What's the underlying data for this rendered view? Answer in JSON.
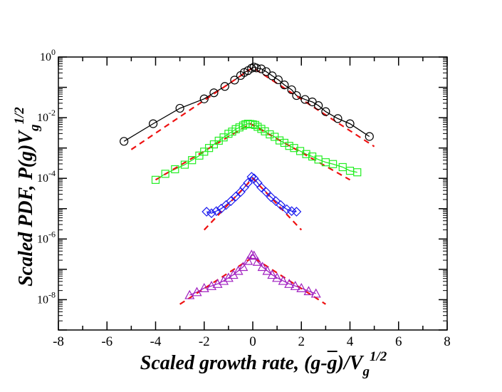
{
  "chart_data": {
    "type": "scatter",
    "title": "",
    "xlabel": {
      "main": "Scaled growth rate, (g-",
      "bar": "g",
      "tail": ")/V",
      "sub": "g",
      "sup": "1/2"
    },
    "ylabel": {
      "main": "Scaled PDF, P(g)V",
      "sub": "g",
      "sup": "1/2"
    },
    "xlim": [
      -8,
      8
    ],
    "ylim_log10": [
      -9,
      0
    ],
    "yscale": "log",
    "xticks": [
      -8,
      -6,
      -4,
      -2,
      0,
      2,
      4,
      6,
      8
    ],
    "xtick_labels": [
      "-8",
      "-6",
      "-4",
      "-2",
      "0",
      "2",
      "4",
      "6",
      "8"
    ],
    "yticks_log10": [
      0,
      -2,
      -4,
      -6,
      -8
    ],
    "ytick_labels": [
      {
        "base": "10",
        "exp": "0"
      },
      {
        "base": "10",
        "exp": "-2"
      },
      {
        "base": "10",
        "exp": "-4"
      },
      {
        "base": "10",
        "exp": "-6"
      },
      {
        "base": "10",
        "exp": "-8"
      }
    ],
    "series": [
      {
        "name": "series-1",
        "marker": "circle",
        "color": "#000000",
        "connected": true,
        "points": [
          [
            -5.3,
            -2.78
          ],
          [
            -4.1,
            -2.2
          ],
          [
            -3.0,
            -1.69
          ],
          [
            -2.0,
            -1.38
          ],
          [
            -1.6,
            -1.18
          ],
          [
            -1.15,
            -0.97
          ],
          [
            -0.75,
            -0.76
          ],
          [
            -0.5,
            -0.61
          ],
          [
            -0.35,
            -0.51
          ],
          [
            -0.2,
            -0.45
          ],
          [
            -0.05,
            -0.37
          ],
          [
            0.05,
            -0.33
          ],
          [
            0.15,
            -0.36
          ],
          [
            0.35,
            -0.39
          ],
          [
            0.55,
            -0.48
          ],
          [
            0.8,
            -0.62
          ],
          [
            1.05,
            -0.75
          ],
          [
            1.3,
            -0.92
          ],
          [
            1.6,
            -1.08
          ],
          [
            1.8,
            -1.27
          ],
          [
            2.15,
            -1.4
          ],
          [
            2.45,
            -1.48
          ],
          [
            2.7,
            -1.6
          ],
          [
            3.0,
            -1.8
          ],
          [
            3.5,
            -2.03
          ],
          [
            4.0,
            -2.2
          ],
          [
            4.8,
            -2.62
          ]
        ],
        "fit": [
          [
            -5.0,
            -3.05
          ],
          [
            0,
            -0.35
          ],
          [
            5.0,
            -2.95
          ]
        ]
      },
      {
        "name": "series-2",
        "marker": "square",
        "color": "#22ee22",
        "connected": true,
        "points": [
          [
            -4.0,
            -4.05
          ],
          [
            -3.6,
            -3.85
          ],
          [
            -3.2,
            -3.7
          ],
          [
            -2.8,
            -3.55
          ],
          [
            -2.5,
            -3.4
          ],
          [
            -2.2,
            -3.25
          ],
          [
            -2.0,
            -3.12
          ],
          [
            -1.8,
            -3.0
          ],
          [
            -1.6,
            -2.88
          ],
          [
            -1.4,
            -2.76
          ],
          [
            -1.2,
            -2.65
          ],
          [
            -1.0,
            -2.53
          ],
          [
            -0.85,
            -2.46
          ],
          [
            -0.7,
            -2.38
          ],
          [
            -0.55,
            -2.32
          ],
          [
            -0.4,
            -2.26
          ],
          [
            -0.3,
            -2.22
          ],
          [
            -0.2,
            -2.2
          ],
          [
            -0.1,
            -2.21
          ],
          [
            0.0,
            -2.22
          ],
          [
            0.1,
            -2.24
          ],
          [
            0.2,
            -2.3
          ],
          [
            0.35,
            -2.37
          ],
          [
            0.5,
            -2.45
          ],
          [
            0.7,
            -2.55
          ],
          [
            0.9,
            -2.63
          ],
          [
            1.1,
            -2.75
          ],
          [
            1.3,
            -2.83
          ],
          [
            1.5,
            -2.93
          ],
          [
            1.7,
            -3.0
          ],
          [
            1.95,
            -3.1
          ],
          [
            2.2,
            -3.2
          ],
          [
            2.45,
            -3.28
          ],
          [
            2.7,
            -3.38
          ],
          [
            3.0,
            -3.47
          ],
          [
            3.3,
            -3.53
          ],
          [
            3.7,
            -3.63
          ],
          [
            4.0,
            -3.75
          ],
          [
            4.3,
            -3.8
          ]
        ],
        "fit": [
          [
            -4.0,
            -4.05
          ],
          [
            -0.1,
            -2.2
          ],
          [
            4.0,
            -4.05
          ]
        ]
      },
      {
        "name": "series-3",
        "marker": "diamond",
        "color": "#1a1aee",
        "connected": true,
        "points": [
          [
            -1.9,
            -5.1
          ],
          [
            -1.7,
            -5.15
          ],
          [
            -1.5,
            -5.08
          ],
          [
            -1.3,
            -5.0
          ],
          [
            -1.1,
            -4.88
          ],
          [
            -0.9,
            -4.75
          ],
          [
            -0.7,
            -4.6
          ],
          [
            -0.5,
            -4.45
          ],
          [
            -0.35,
            -4.3
          ],
          [
            -0.2,
            -4.15
          ],
          [
            -0.05,
            -3.95
          ],
          [
            0.05,
            -4.0
          ],
          [
            0.2,
            -4.15
          ],
          [
            0.35,
            -4.3
          ],
          [
            0.55,
            -4.45
          ],
          [
            0.75,
            -4.62
          ],
          [
            0.95,
            -4.75
          ],
          [
            1.15,
            -4.88
          ],
          [
            1.4,
            -5.02
          ],
          [
            1.6,
            -5.08
          ],
          [
            1.8,
            -5.1
          ]
        ],
        "fit": [
          [
            -2.0,
            -5.7
          ],
          [
            0,
            -4.0
          ],
          [
            2.0,
            -5.7
          ]
        ]
      },
      {
        "name": "series-4",
        "marker": "triangle",
        "color": "#a020c0",
        "connected": true,
        "points": [
          [
            -2.6,
            -7.85
          ],
          [
            -2.3,
            -7.75
          ],
          [
            -2.0,
            -7.62
          ],
          [
            -1.7,
            -7.55
          ],
          [
            -1.45,
            -7.48
          ],
          [
            -1.2,
            -7.38
          ],
          [
            -1.0,
            -7.28
          ],
          [
            -0.8,
            -7.18
          ],
          [
            -0.6,
            -7.05
          ],
          [
            -0.4,
            -6.92
          ],
          [
            -0.2,
            -6.72
          ],
          [
            -0.05,
            -6.52
          ],
          [
            0.05,
            -6.55
          ],
          [
            0.2,
            -6.75
          ],
          [
            0.4,
            -6.92
          ],
          [
            0.6,
            -7.05
          ],
          [
            0.8,
            -7.18
          ],
          [
            1.0,
            -7.28
          ],
          [
            1.25,
            -7.38
          ],
          [
            1.5,
            -7.48
          ],
          [
            1.75,
            -7.55
          ],
          [
            2.0,
            -7.62
          ],
          [
            2.3,
            -7.72
          ],
          [
            2.6,
            -7.8
          ]
        ],
        "fit": [
          [
            -3.0,
            -8.15
          ],
          [
            0,
            -6.6
          ],
          [
            3.0,
            -8.15
          ]
        ]
      }
    ]
  }
}
